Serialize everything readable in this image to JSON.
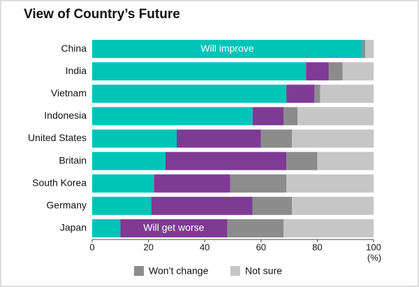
{
  "chart_data": {
    "type": "stacked_barh",
    "title": "View of Country’s Future",
    "categories": [
      "China",
      "India",
      "Vietnam",
      "Indonesia",
      "United States",
      "Britain",
      "South Korea",
      "Germany",
      "Japan"
    ],
    "series": [
      {
        "name": "Will improve",
        "color": "#00c4b8",
        "values": [
          96,
          76,
          69,
          57,
          30,
          26,
          22,
          21,
          10
        ]
      },
      {
        "name": "Will get worse",
        "color": "#7f3a96",
        "values": [
          0,
          8,
          10,
          11,
          30,
          43,
          27,
          36,
          38
        ]
      },
      {
        "name": "Won’t change",
        "color": "#8c8c8c",
        "values": [
          1,
          5,
          2,
          5,
          11,
          11,
          20,
          14,
          20
        ]
      },
      {
        "name": "Not sure",
        "color": "#c6c6c6",
        "values": [
          3,
          11,
          19,
          27,
          29,
          20,
          31,
          29,
          32
        ]
      }
    ],
    "x_label": "(%)",
    "xlim": [
      0,
      100
    ],
    "xticks": [
      0,
      20,
      40,
      60,
      80,
      100
    ]
  }
}
